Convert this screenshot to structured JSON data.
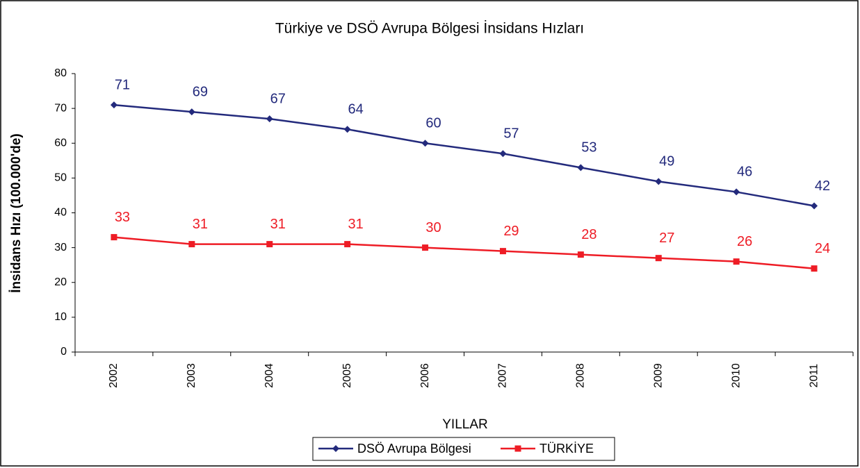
{
  "chart_data": {
    "type": "line",
    "title": "Türkiye ve DSÖ Avrupa Bölgesi İnsidans Hızları",
    "x_label": "YILLAR",
    "y_label": "İnsidans Hızı (100.000'de)",
    "categories": [
      "2002",
      "2003",
      "2004",
      "2005",
      "2006",
      "2007",
      "2008",
      "2009",
      "2010",
      "2011"
    ],
    "series": [
      {
        "name": "DSÖ Avrupa Bölgesi",
        "color": "#232a7c",
        "marker": "diamond",
        "values": [
          71,
          69,
          67,
          64,
          60,
          57,
          53,
          49,
          46,
          42
        ]
      },
      {
        "name": "TÜRKİYE",
        "color": "#ee1c25",
        "marker": "square",
        "values": [
          33,
          31,
          31,
          31,
          30,
          29,
          28,
          27,
          26,
          24
        ]
      }
    ],
    "ylim": [
      0,
      80
    ],
    "yticks": [
      0,
      10,
      20,
      30,
      40,
      50,
      60,
      70,
      80
    ],
    "grid": false,
    "legend": "bottom"
  }
}
